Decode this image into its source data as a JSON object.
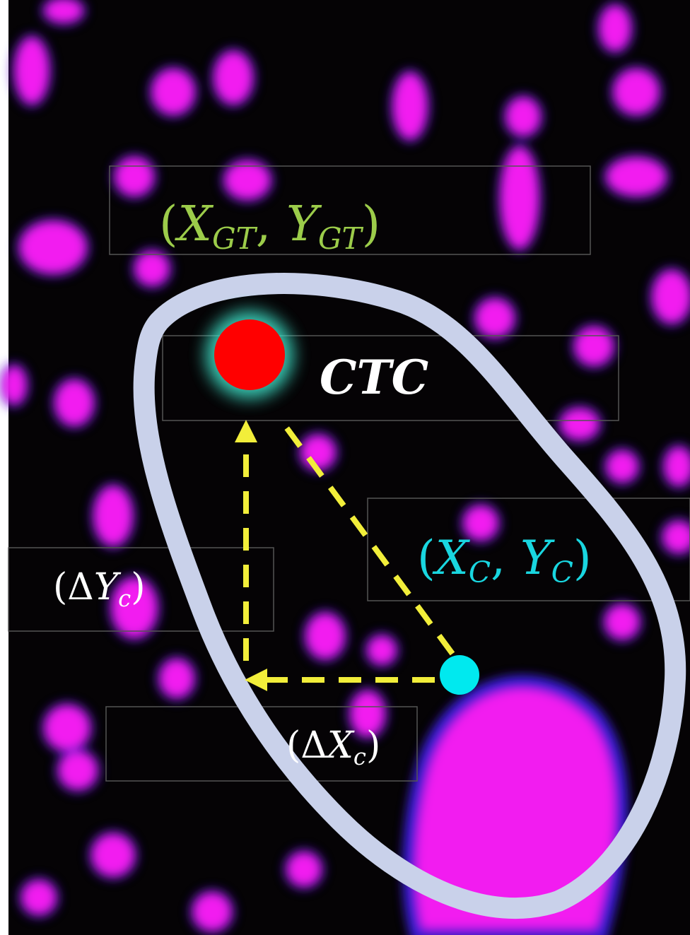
{
  "labels": {
    "gt": [
      {
        "text": "("
      },
      {
        "text": "X"
      },
      {
        "text": "GT"
      },
      {
        "text": ", "
      },
      {
        "text": "Y"
      },
      {
        "text": "GT"
      },
      {
        "text": ")"
      }
    ],
    "ctc": "CTC",
    "c": [
      {
        "text": "("
      },
      {
        "text": "X"
      },
      {
        "text": "C"
      },
      {
        "text": ", "
      },
      {
        "text": "Y"
      },
      {
        "text": "C"
      },
      {
        "text": ")"
      }
    ],
    "dy": [
      {
        "text": "(Δ"
      },
      {
        "text": "Y"
      },
      {
        "text": "c"
      },
      {
        "text": ")"
      }
    ],
    "dx": [
      {
        "text": "(Δ"
      },
      {
        "text": "X"
      },
      {
        "text": "c"
      },
      {
        "text": ")"
      }
    ]
  }
}
